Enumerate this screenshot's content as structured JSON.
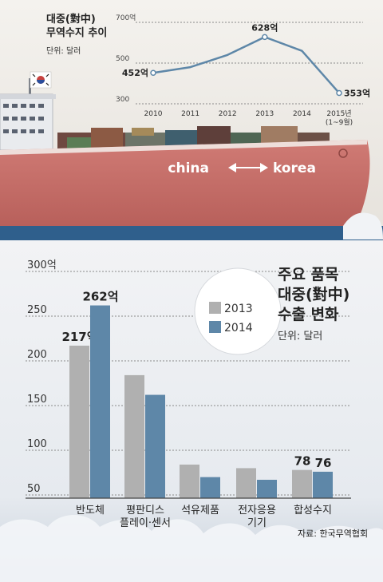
{
  "top_chart": {
    "title_line1": "대중(對中)",
    "title_line2": "무역수지 추이",
    "unit": "단위: 달러"
  },
  "ship": {
    "route_from": "china",
    "route_to": "korea"
  },
  "main_chart": {
    "title_line1": "주요 품목",
    "title_line2": "대중(對中)",
    "title_line3": "수출 변화",
    "unit": "단위: 달러",
    "legend": [
      "2013",
      "2014"
    ],
    "source": "자료: 한국무역협회",
    "category_labels": [
      [
        "반도체"
      ],
      [
        "평판디스",
        "플레이·센서"
      ],
      [
        "석유제품"
      ],
      [
        "전자응용",
        "기기"
      ],
      [
        "합성수지"
      ]
    ]
  },
  "colors": {
    "hull": "#c8716c",
    "sea": "#2f5f8c",
    "bar_2013": "#b0b0b0",
    "bar_2014": "#5e87a8",
    "line": "#5e87a8"
  },
  "chart_data": [
    {
      "type": "line",
      "title": "대중(對中) 무역수지 추이",
      "unit": "단위: 달러",
      "x": [
        "2010",
        "2011",
        "2012",
        "2013",
        "2014",
        "2015년 (1~9월)"
      ],
      "series": [
        {
          "values": [
            452,
            480,
            540,
            628,
            560,
            353
          ]
        }
      ],
      "data_labels": {
        "2010": "452억",
        "2013": "628억",
        "2015년 (1~9월)": "353억"
      },
      "yticks": [
        "700억",
        "500",
        "300"
      ],
      "ylim": [
        300,
        700
      ],
      "grid": true
    },
    {
      "type": "bar",
      "title": "주요 품목 대중(對中) 수출 변화",
      "unit": "단위: 달러",
      "categories": [
        "반도체",
        "평판디스플레이·센서",
        "석유제품",
        "전자응용기기",
        "합성수지"
      ],
      "series": [
        {
          "name": "2013",
          "values": [
            217,
            184,
            84,
            80,
            78
          ]
        },
        {
          "name": "2014",
          "values": [
            262,
            162,
            70,
            67,
            76
          ]
        }
      ],
      "data_labels": {
        "반도체": [
          "217억",
          "262억"
        ],
        "합성수지": [
          "78",
          "76"
        ]
      },
      "yticks": [
        "300억",
        "250",
        "200",
        "150",
        "100",
        "50"
      ],
      "ylim": [
        50,
        300
      ],
      "grid": true,
      "legend_position": "top-right"
    }
  ]
}
